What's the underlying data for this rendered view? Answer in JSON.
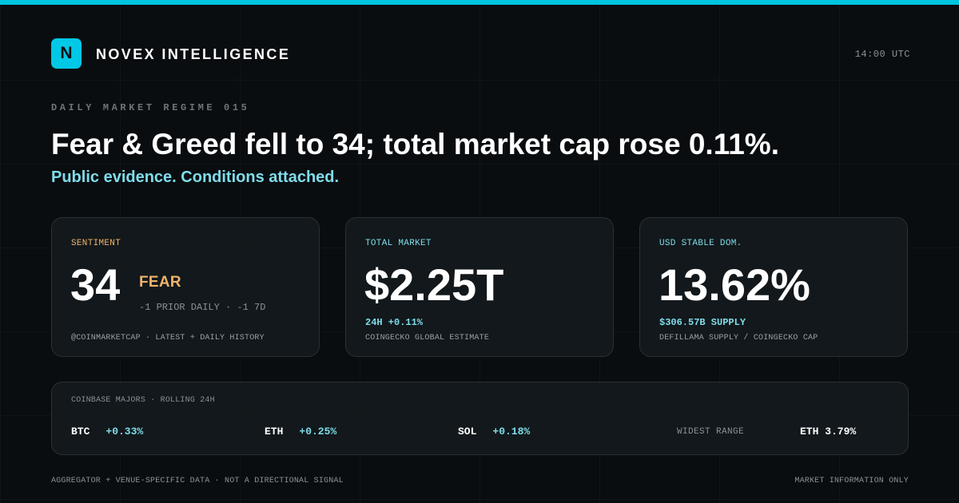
{
  "colors": {
    "accent": "#00c4e0",
    "accent_text": "#7fdcea",
    "fear": "#f0b36a",
    "background": "#0a0d10"
  },
  "header": {
    "logo_letter": "N",
    "brand": "NOVEX INTELLIGENCE",
    "time": "14:00 UTC"
  },
  "hero": {
    "eyebrow": "DAILY MARKET REGIME 015",
    "headline": "Fear & Greed fell to 34; total market cap rose 0.11%.",
    "subhead": "Public evidence. Conditions attached."
  },
  "cards": {
    "sentiment": {
      "label": "SENTIMENT",
      "value": "34",
      "state": "FEAR",
      "change": "-1 PRIOR DAILY · -1 7D",
      "source": "@COINMARKETCAP · LATEST + DAILY HISTORY"
    },
    "total_market": {
      "label": "TOTAL MARKET",
      "value": "$2.25T",
      "metric": "24H +0.11%",
      "source": "COINGECKO GLOBAL ESTIMATE"
    },
    "stable_dom": {
      "label": "USD STABLE DOM.",
      "value": "13.62%",
      "metric": "$306.57B SUPPLY",
      "source": "DEFILLAMA SUPPLY / COINGECKO CAP"
    }
  },
  "majors": {
    "title": "COINBASE MAJORS · ROLLING 24H",
    "coins": [
      {
        "symbol": "BTC",
        "change": "+0.33%"
      },
      {
        "symbol": "ETH",
        "change": "+0.25%"
      },
      {
        "symbol": "SOL",
        "change": "+0.18%"
      }
    ],
    "widest_label": "WIDEST RANGE",
    "widest_value": "ETH 3.79%"
  },
  "footer": {
    "left": "AGGREGATOR + VENUE-SPECIFIC DATA · NOT A DIRECTIONAL SIGNAL",
    "right": "MARKET INFORMATION ONLY"
  }
}
